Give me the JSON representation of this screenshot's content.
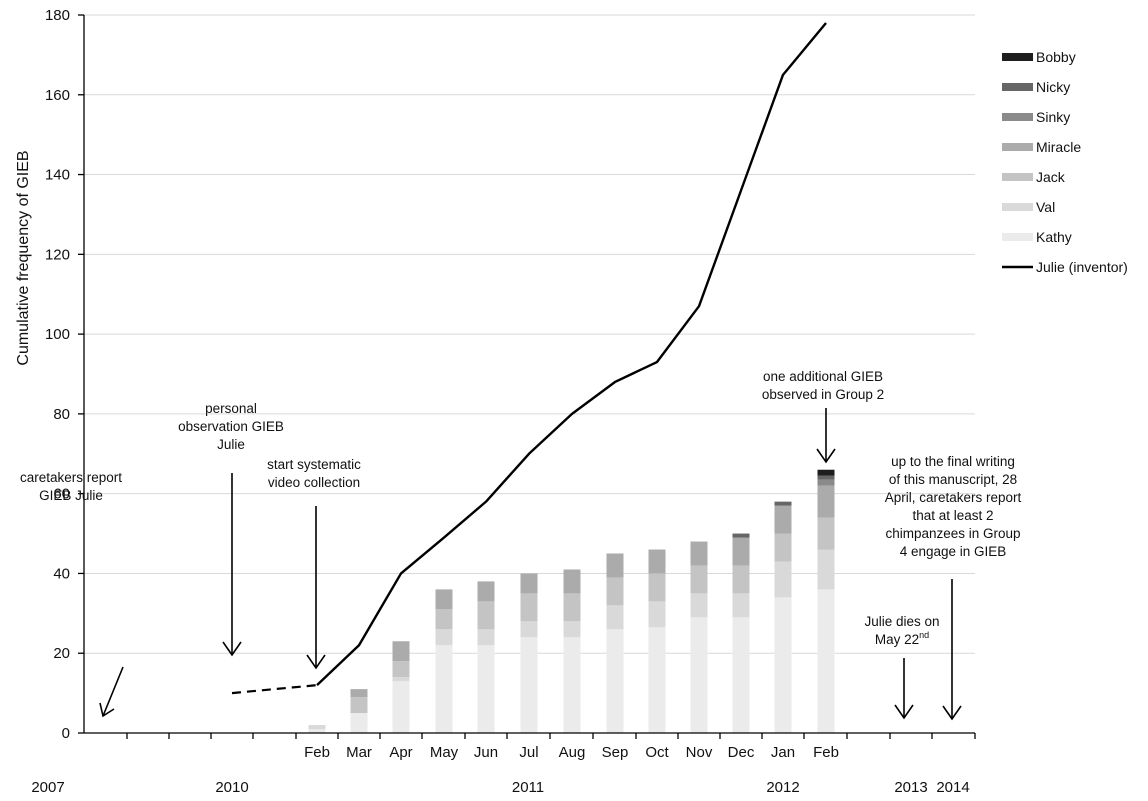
{
  "chart_data": {
    "type": "bar",
    "ylabel": "Cumulative frequency of GIEB",
    "ylim": [
      0,
      180
    ],
    "y_ticks": [
      0,
      20,
      40,
      60,
      80,
      100,
      120,
      140,
      160,
      180
    ],
    "grid": true,
    "legend_position": "right",
    "month_labels": [
      "Feb",
      "Mar",
      "Apr",
      "May",
      "Jun",
      "Jul",
      "Aug",
      "Sep",
      "Oct",
      "Nov",
      "Dec",
      "Jan",
      "Feb"
    ],
    "year_labels": [
      "2007",
      "2010",
      "2011",
      "2012",
      "2013",
      "2014"
    ],
    "series": [
      {
        "name": "Kathy",
        "color": "#ebebeb",
        "values": [
          1,
          5,
          13,
          22,
          22,
          24,
          24,
          26,
          26.5,
          29,
          29,
          34,
          36
        ]
      },
      {
        "name": "Val",
        "color": "#d9d9d9",
        "values": [
          1,
          0,
          1,
          4,
          4,
          4,
          4,
          6,
          6.5,
          6,
          6,
          9,
          10
        ]
      },
      {
        "name": "Jack",
        "color": "#c4c4c4",
        "values": [
          0,
          4,
          4,
          5,
          7,
          7,
          7,
          7,
          7,
          7,
          7,
          7,
          8
        ]
      },
      {
        "name": "Miracle",
        "color": "#ababab",
        "values": [
          0,
          2,
          5,
          5,
          5,
          5,
          6,
          6,
          6,
          6,
          7,
          7,
          8
        ]
      },
      {
        "name": "Sinky",
        "color": "#8a8a8a",
        "values": [
          0,
          0,
          0,
          0,
          0,
          0,
          0,
          0,
          0,
          0,
          0,
          0,
          1.5
        ]
      },
      {
        "name": "Nicky",
        "color": "#666666",
        "values": [
          0,
          0,
          0,
          0,
          0,
          0,
          0,
          0,
          0,
          0,
          1,
          1,
          1
        ]
      },
      {
        "name": "Bobby",
        "color": "#1e1e1e",
        "values": [
          0,
          0,
          0,
          0,
          0,
          0,
          0,
          0,
          0,
          0,
          0,
          0,
          1.5
        ]
      }
    ],
    "line_series": {
      "name": "Julie (inventor)",
      "color": "#000000",
      "dashed_points": [
        10,
        12
      ],
      "values": [
        12,
        22,
        40,
        49,
        58,
        70,
        80,
        88,
        93,
        107,
        136,
        165,
        178
      ]
    },
    "legend_order": [
      "Bobby",
      "Nicky",
      "Sinky",
      "Miracle",
      "Jack",
      "Val",
      "Kathy",
      "Julie (inventor)"
    ]
  },
  "annotations": {
    "caretakers_report": [
      "caretakers report",
      "GIEB Julie"
    ],
    "personal_observation": [
      "personal",
      "observation GIEB",
      "Julie"
    ],
    "start_systematic": [
      "start systematic",
      "video collection"
    ],
    "one_additional": [
      "one additional GIEB",
      "observed in Group 2"
    ],
    "julie_dies": [
      "Julie dies on",
      "May 22",
      "nd"
    ],
    "up_to_final": [
      "up to the final writing",
      "of this manuscript, 28",
      "April, caretakers report",
      "that at least 2",
      "chimpanzees in Group",
      "4 engage in GIEB"
    ]
  }
}
